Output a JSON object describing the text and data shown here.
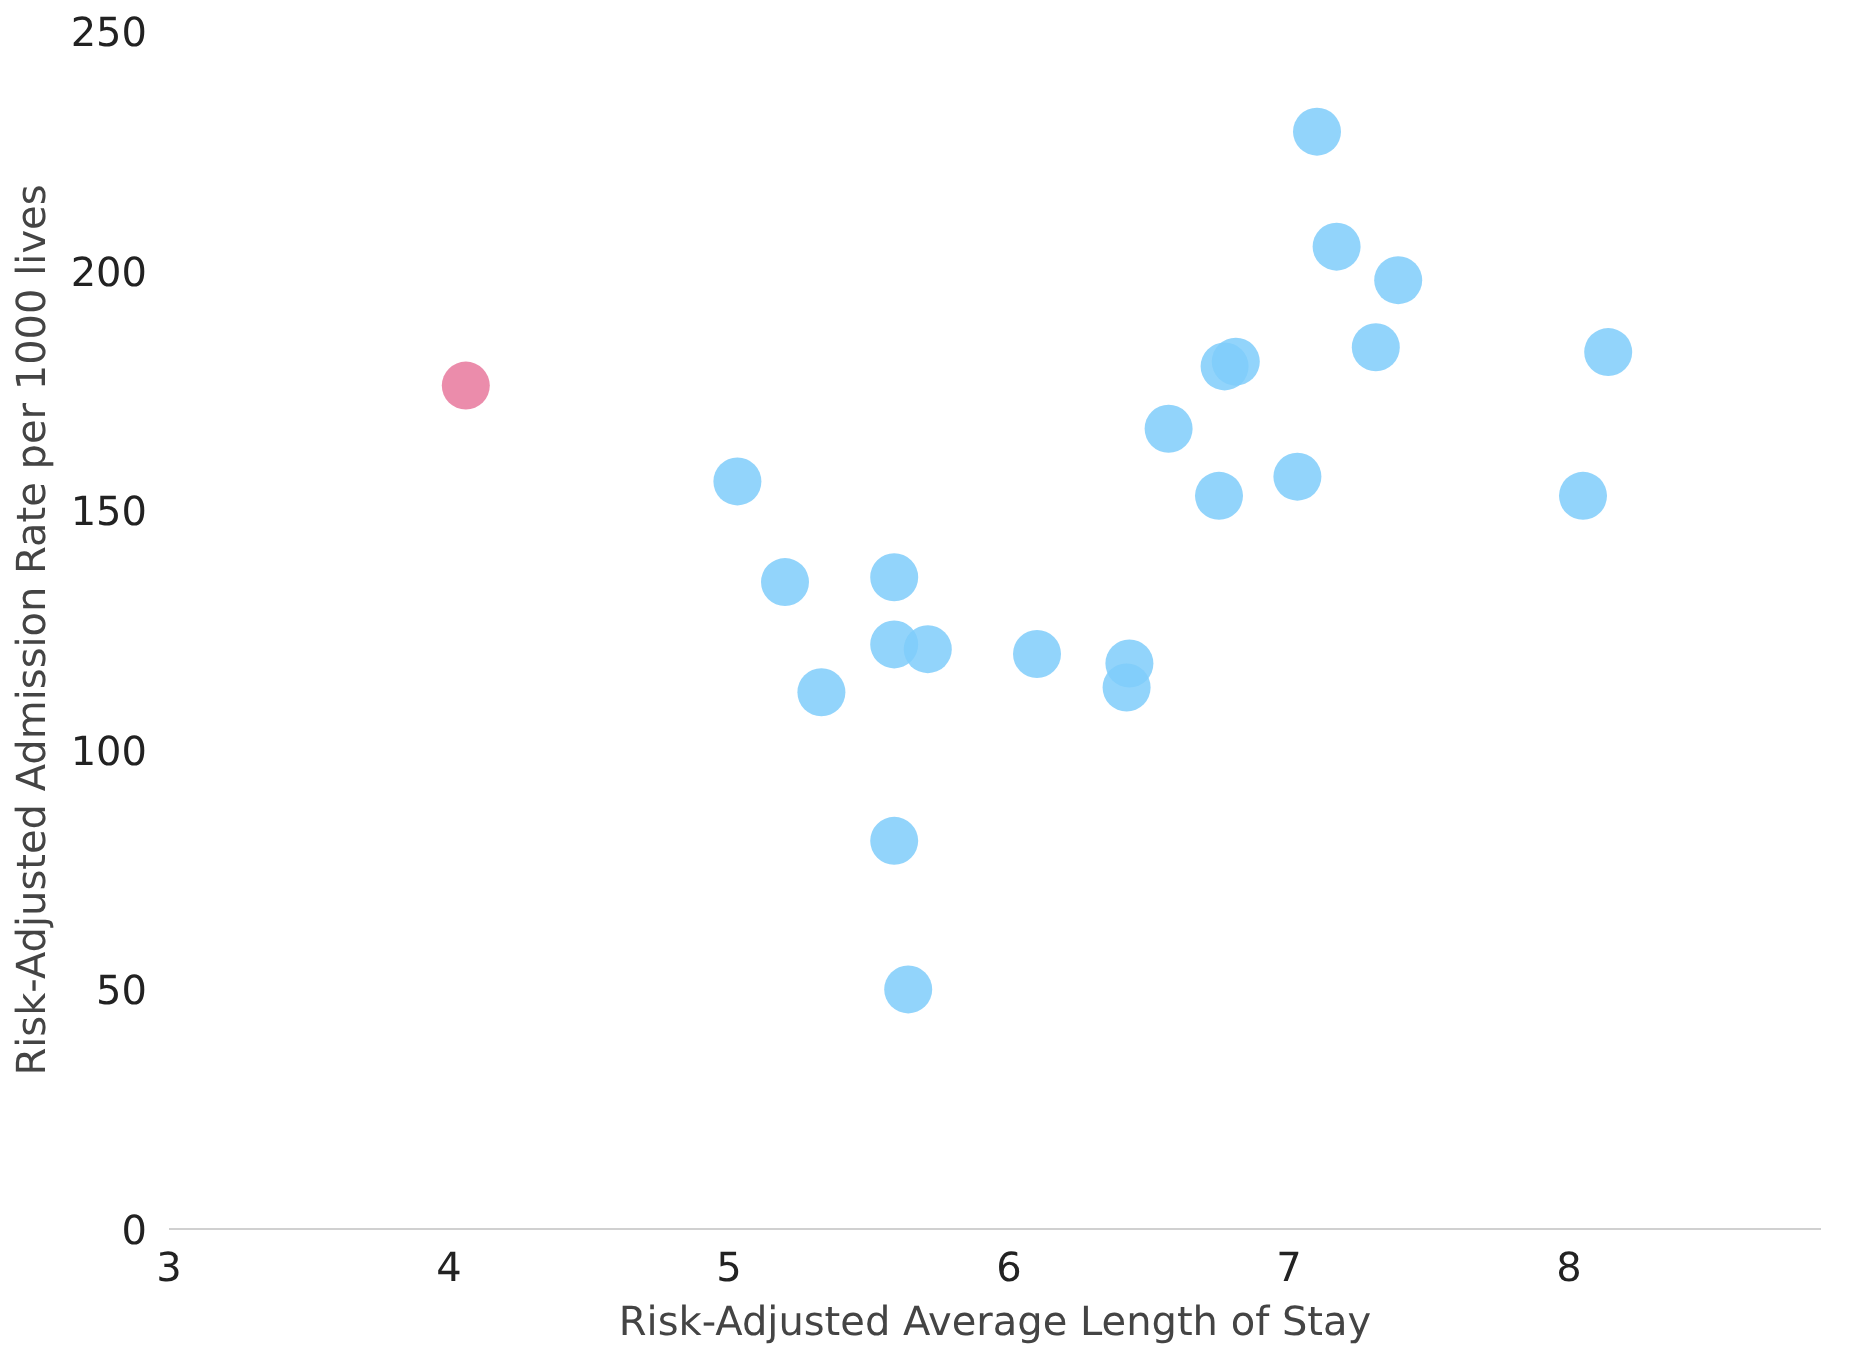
{
  "chart_data": {
    "type": "scatter",
    "xlabel": "Risk-Adjusted Average Length of Stay",
    "ylabel": "Risk-Adjusted Admission Rate per 1000 lives",
    "xlim": [
      3,
      8.9
    ],
    "xticks": [
      3,
      4,
      5,
      6,
      7,
      8
    ],
    "ylim": [
      0,
      250
    ],
    "yticks": [
      0,
      50,
      100,
      150,
      200,
      250
    ],
    "grid": false,
    "marker": "circle",
    "series": [
      {
        "color": "#7fccfa",
        "x": [
          5.03,
          5.2,
          5.33,
          5.59,
          5.59,
          5.71,
          5.59,
          5.64,
          6.1,
          6.43,
          6.42,
          6.57,
          6.75,
          6.77,
          6.81,
          7.03,
          7.1,
          7.17,
          7.31,
          7.39,
          8.05,
          8.14
        ],
        "values": [
          156,
          135,
          112,
          136,
          122,
          121,
          81,
          50,
          120,
          118,
          113,
          167,
          153,
          180,
          181,
          157,
          229,
          205,
          184,
          198,
          153,
          183
        ]
      },
      {
        "color": "#e8789c",
        "x": [
          4.06
        ],
        "values": [
          176
        ]
      }
    ]
  }
}
